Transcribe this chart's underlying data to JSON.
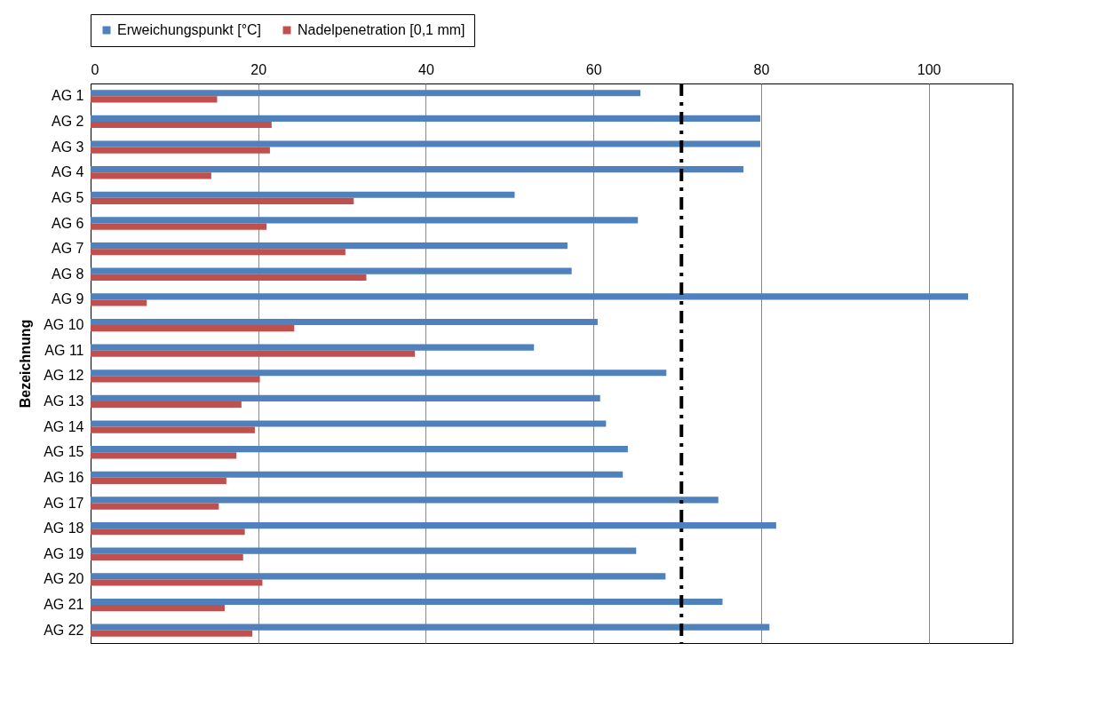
{
  "chart_data": {
    "type": "bar",
    "orientation": "horizontal",
    "ylabel": "Bezeichnung",
    "categories": [
      "AG 1",
      "AG 2",
      "AG 3",
      "AG 4",
      "AG 5",
      "AG 6",
      "AG 7",
      "AG 8",
      "AG 9",
      "AG 10",
      "AG 11",
      "AG 12",
      "AG 13",
      "AG 14",
      "AG 15",
      "AG 16",
      "AG 17",
      "AG 18",
      "AG 19",
      "AG 20",
      "AG 21",
      "AG 22"
    ],
    "series": [
      {
        "name": "Erweichungspunkt [°C]",
        "color": "#4f81bd",
        "values": [
          65.6,
          79.9,
          79.9,
          77.9,
          50.6,
          65.3,
          56.9,
          57.4,
          104.7,
          60.5,
          52.9,
          68.7,
          60.8,
          61.5,
          64.1,
          63.5,
          74.9,
          81.8,
          65.1,
          68.6,
          75.4,
          81.0
        ]
      },
      {
        "name": "Nadelpenetration [0,1 mm]",
        "color": "#c0504d",
        "values": [
          15.1,
          21.6,
          21.4,
          14.4,
          31.4,
          21.0,
          30.4,
          32.9,
          6.7,
          24.3,
          38.7,
          20.2,
          18.0,
          19.6,
          17.4,
          16.2,
          15.3,
          18.4,
          18.2,
          20.5,
          16.0,
          19.3
        ]
      }
    ],
    "xlim": [
      0,
      110
    ],
    "xticks": [
      0,
      20,
      40,
      60,
      80,
      100
    ],
    "grid": "x",
    "legend": "top",
    "ref_lines": [
      {
        "axis": "x",
        "value": 70.5,
        "color": "#000000",
        "line_style": "dashed"
      }
    ]
  }
}
